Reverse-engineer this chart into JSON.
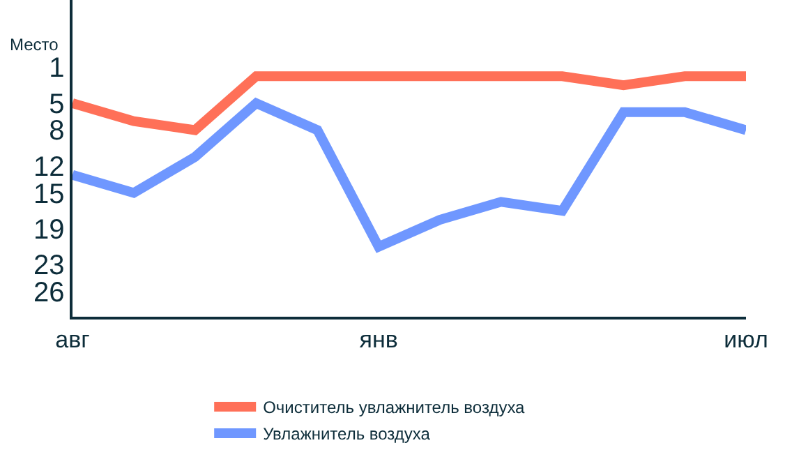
{
  "chart_data": {
    "type": "line",
    "ylabel": "Место",
    "categories": [
      "авг",
      null,
      null,
      null,
      null,
      "янв",
      null,
      null,
      null,
      null,
      null,
      "июл"
    ],
    "series": [
      {
        "name": "Очиститель увлажнитель воздуха",
        "color": "#ff7058",
        "values": [
          5,
          7,
          8,
          2,
          2,
          2,
          2,
          2,
          2,
          3,
          2,
          2
        ]
      },
      {
        "name": "Увлажнитель воздуха",
        "color": "#6f97ff",
        "values": [
          13,
          15,
          11,
          5,
          8,
          21,
          18,
          16,
          17,
          6,
          6,
          8
        ]
      }
    ],
    "ylim": [
      28.8,
      -6.5
    ],
    "yticks": [
      1,
      5,
      8,
      12,
      15,
      19,
      23,
      26
    ],
    "legend": "bottom",
    "marker": "none",
    "line_style": "solid"
  }
}
